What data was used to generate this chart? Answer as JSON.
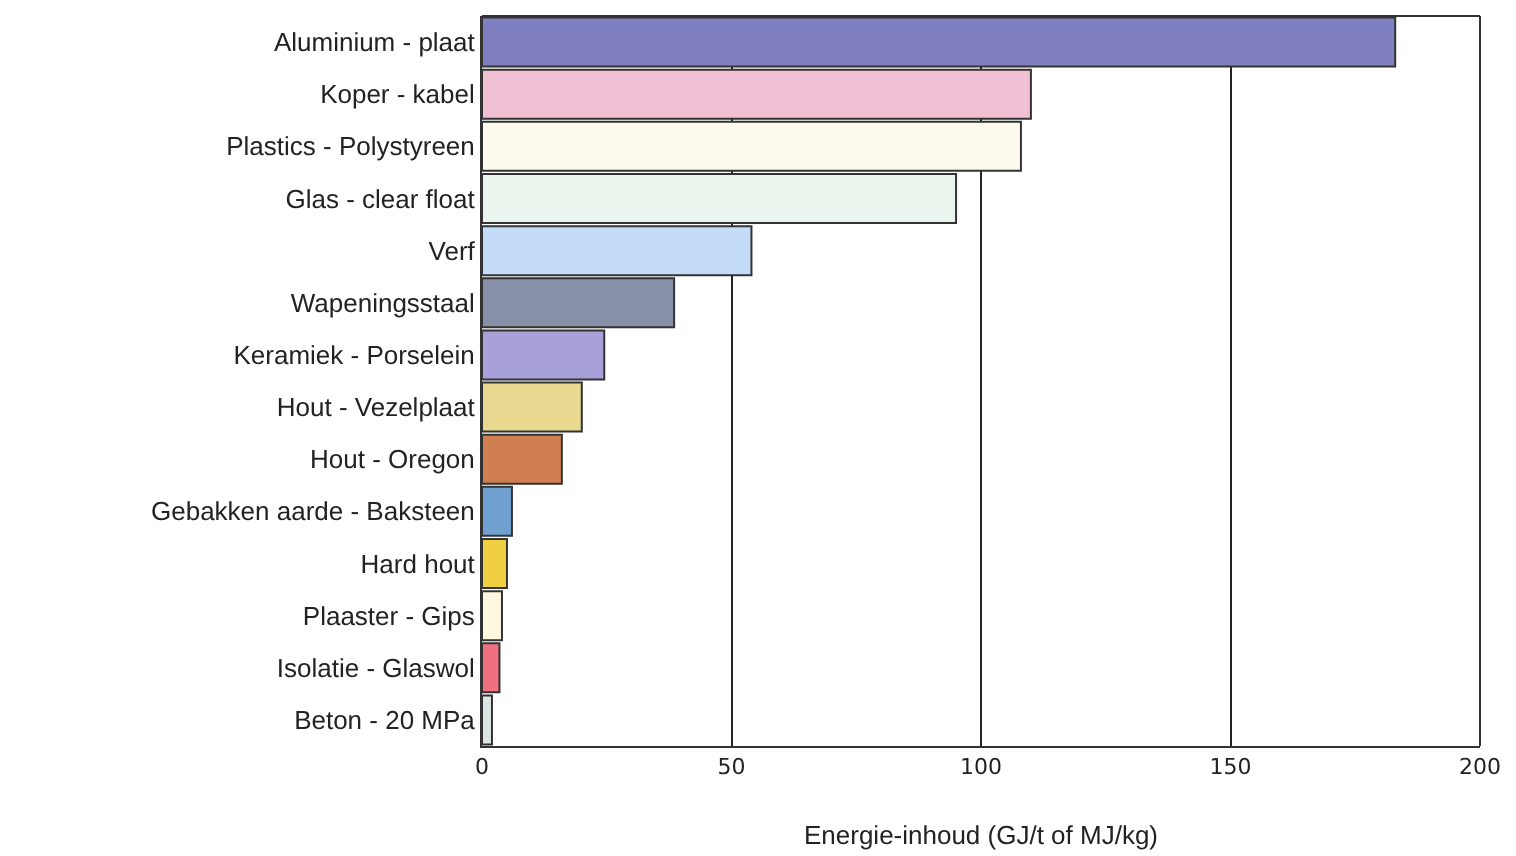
{
  "chart_data": {
    "type": "bar",
    "orientation": "horizontal",
    "xlabel": "Energie-inhoud (GJ/t of MJ/kg)",
    "categories": [
      "Aluminium - plaat",
      "Koper - kabel",
      "Plastics - Polystyreen",
      "Glas - clear float",
      "Verf",
      "Wapeningsstaal",
      "Keramiek - Porselein",
      "Hout - Vezelplaat",
      "Hout - Oregon",
      "Gebakken aarde - Baksteen",
      "Hard hout",
      "Plaaster - Gips",
      "Isolatie - Glaswol",
      "Beton - 20 MPa"
    ],
    "values": [
      183,
      110,
      108,
      95,
      54,
      38.5,
      24.5,
      20,
      16,
      6,
      5,
      4,
      3.5,
      2
    ],
    "colors": [
      "#8080c0",
      "#f0c0d4",
      "#fffaee",
      "#eaf5ee",
      "#c4dcf8",
      "#8890a8",
      "#a8a0d8",
      "#e8d890",
      "#d08050",
      "#70a0d0",
      "#f0d040",
      "#fff8e0",
      "#f07080",
      "#dde4e4"
    ],
    "xlim": [
      0,
      200
    ],
    "xticks": [
      0,
      50,
      100,
      150,
      200
    ],
    "grid": "x"
  }
}
